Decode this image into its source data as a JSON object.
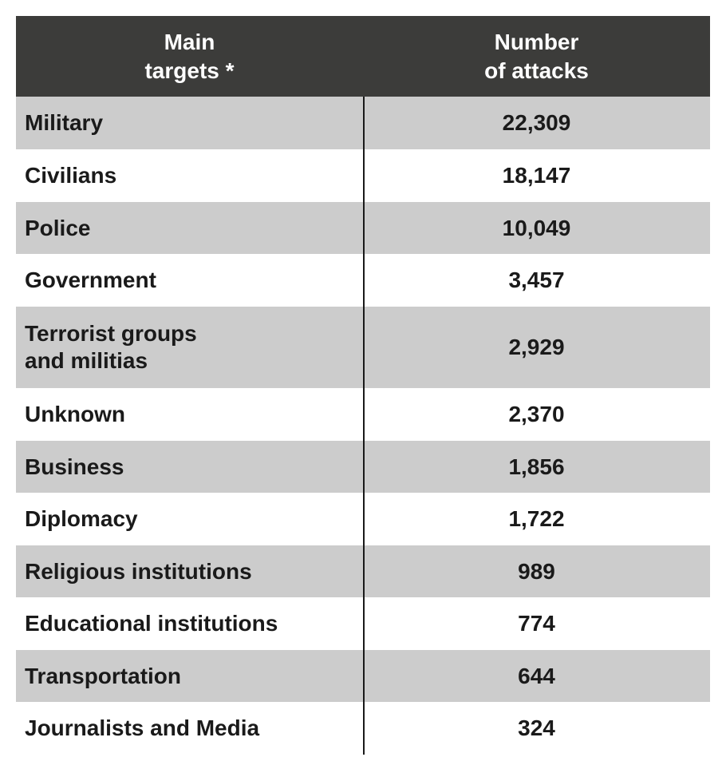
{
  "chart_data": {
    "type": "table",
    "columns": [
      "Main\ntargets *",
      "Number\nof attacks"
    ],
    "header_lines": [
      [
        "Main",
        "targets *"
      ],
      [
        "Number",
        "of attacks"
      ]
    ],
    "rows": [
      {
        "target": "Military",
        "attacks": "22,309"
      },
      {
        "target": "Civilians",
        "attacks": "18,147"
      },
      {
        "target": "Police",
        "attacks": "10,049"
      },
      {
        "target": "Government",
        "attacks": "3,457"
      },
      {
        "target": "Terrorist groups\nand militias",
        "attacks": "2,929"
      },
      {
        "target": "Unknown",
        "attacks": "2,370"
      },
      {
        "target": "Business",
        "attacks": "1,856"
      },
      {
        "target": "Diplomacy",
        "attacks": "1,722"
      },
      {
        "target": "Religious institutions",
        "attacks": "989"
      },
      {
        "target": "Educational institutions",
        "attacks": "774"
      },
      {
        "target": "Transportation",
        "attacks": "644"
      },
      {
        "target": "Journalists and Media",
        "attacks": "324"
      }
    ],
    "colors": {
      "header": "#3c3c3a",
      "stripe": "#cccccc",
      "text": "#1a1a1a"
    }
  }
}
